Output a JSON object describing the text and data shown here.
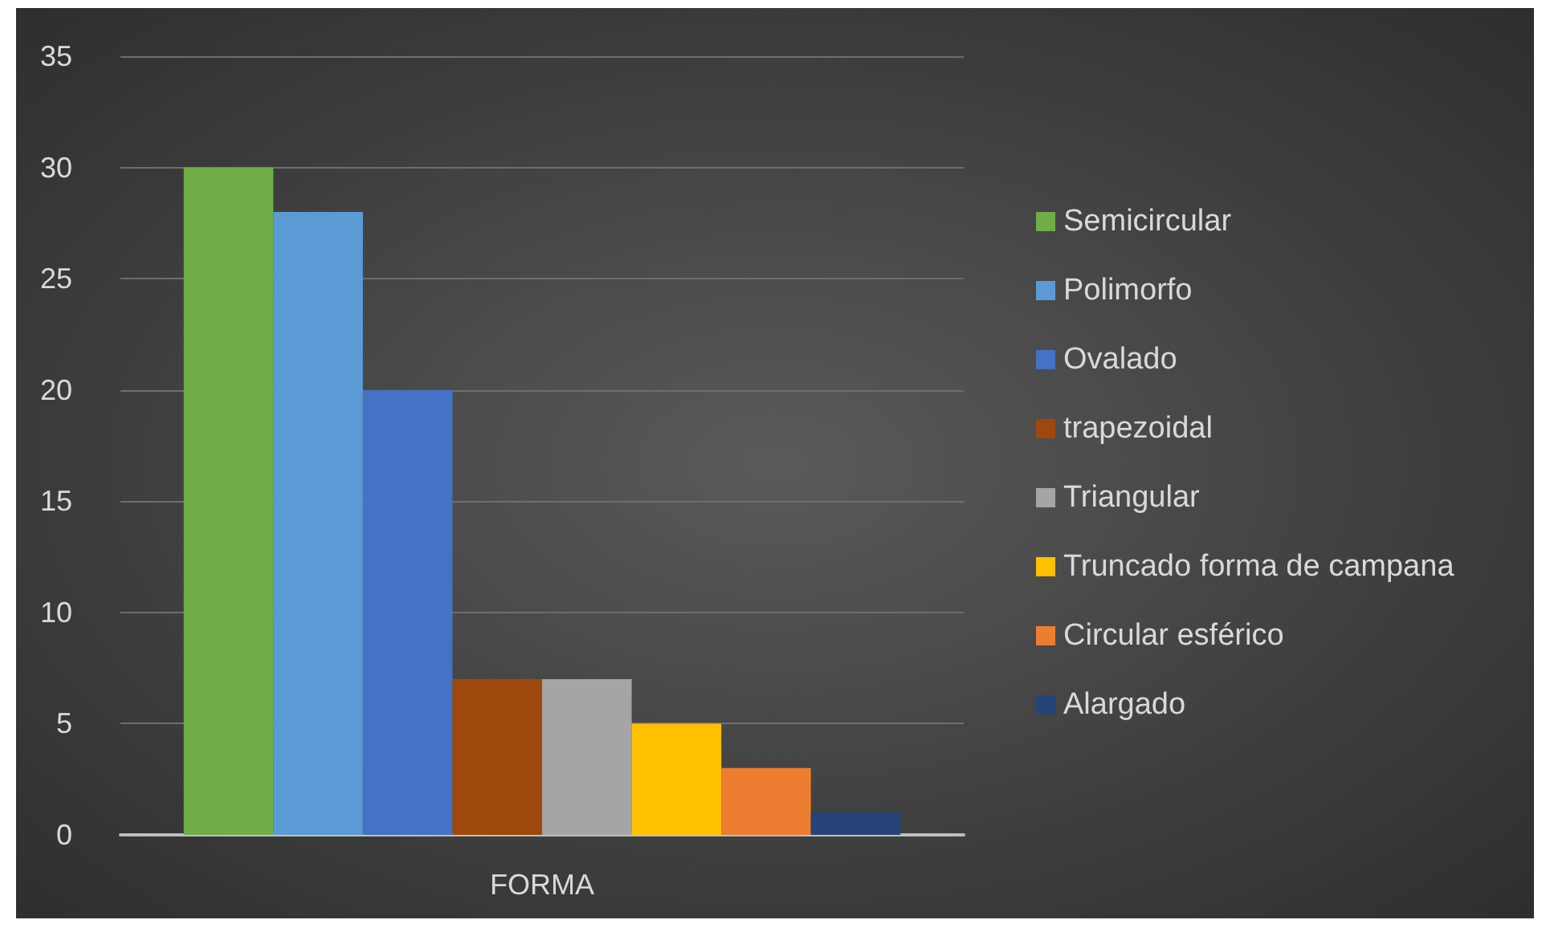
{
  "chart_data": {
    "type": "bar",
    "categories": [
      "FORMA"
    ],
    "series": [
      {
        "name": "Semicircular",
        "color": "#70ad47",
        "values": [
          30
        ]
      },
      {
        "name": "Polimorfo",
        "color": "#5b9bd5",
        "values": [
          28
        ]
      },
      {
        "name": "Ovalado",
        "color": "#4472c4",
        "values": [
          20
        ]
      },
      {
        "name": "trapezoidal",
        "color": "#9e480e",
        "values": [
          7
        ]
      },
      {
        "name": "Triangular",
        "color": "#a5a5a5",
        "values": [
          7
        ]
      },
      {
        "name": "Truncado forma de campana",
        "color": "#ffc000",
        "values": [
          5
        ]
      },
      {
        "name": "Circular esférico",
        "color": "#ed7d31",
        "values": [
          3
        ]
      },
      {
        "name": "Alargado",
        "color": "#264478",
        "values": [
          1
        ]
      }
    ],
    "ylim": [
      0,
      35
    ],
    "yticks": [
      0,
      5,
      10,
      15,
      20,
      25,
      30,
      35
    ],
    "grid": "y",
    "legend": "right"
  }
}
